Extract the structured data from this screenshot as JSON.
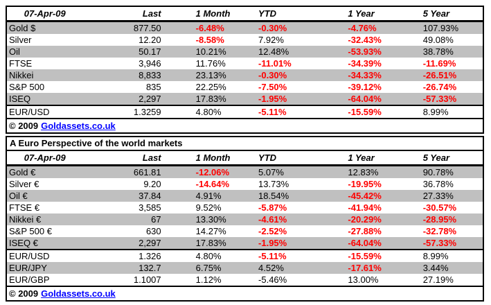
{
  "colors": {
    "negative_red": "#FF0000",
    "row_stripe_gray": "#C0C0C0",
    "link_blue": "#0000FF",
    "border_black": "#000000",
    "background": "#FFFFFF"
  },
  "table1": {
    "date": "07-Apr-09",
    "columns": [
      "Last",
      "1 Month",
      "YTD",
      "1 Year",
      "5 Year"
    ],
    "rows": [
      {
        "label": "Gold $",
        "values": [
          {
            "t": "877.50"
          },
          {
            "t": "-6.48%",
            "red": true
          },
          {
            "t": "-0.30%",
            "red": true
          },
          {
            "t": "-4.76%",
            "red": true
          },
          {
            "t": "107.93%"
          }
        ]
      },
      {
        "label": "Silver",
        "values": [
          {
            "t": "12.20"
          },
          {
            "t": "-8.58%",
            "red": true
          },
          {
            "t": "7.92%"
          },
          {
            "t": "-32.43%",
            "red": true
          },
          {
            "t": "49.08%"
          }
        ]
      },
      {
        "label": "Oil",
        "values": [
          {
            "t": "50.17"
          },
          {
            "t": "10.21%"
          },
          {
            "t": "12.48%"
          },
          {
            "t": "-53.93%",
            "red": true
          },
          {
            "t": "38.78%"
          }
        ]
      },
      {
        "label": "FTSE",
        "values": [
          {
            "t": "3,946"
          },
          {
            "t": "11.76%"
          },
          {
            "t": "-11.01%",
            "red": true
          },
          {
            "t": "-34.39%",
            "red": true
          },
          {
            "t": "-11.69%",
            "red": true
          }
        ]
      },
      {
        "label": "Nikkei",
        "values": [
          {
            "t": "8,833"
          },
          {
            "t": "23.13%"
          },
          {
            "t": "-0.30%",
            "red": true
          },
          {
            "t": "-34.33%",
            "red": true
          },
          {
            "t": "-26.51%",
            "red": true
          }
        ]
      },
      {
        "label": "S&P 500",
        "values": [
          {
            "t": "835"
          },
          {
            "t": "22.25%"
          },
          {
            "t": "-7.50%",
            "red": true
          },
          {
            "t": "-39.12%",
            "red": true
          },
          {
            "t": "-26.74%",
            "red": true
          }
        ]
      },
      {
        "label": "ISEQ",
        "values": [
          {
            "t": "2,297"
          },
          {
            "t": "17.83%"
          },
          {
            "t": "-1.95%",
            "red": true
          },
          {
            "t": "-64.04%",
            "red": true
          },
          {
            "t": "-57.33%",
            "red": true
          }
        ]
      },
      {
        "label": "EUR/USD",
        "sep": true,
        "values": [
          {
            "t": "1.3259"
          },
          {
            "t": "4.80%"
          },
          {
            "t": "-5.11%",
            "red": true
          },
          {
            "t": "-15.59%",
            "red": true
          },
          {
            "t": "8.99%"
          }
        ]
      }
    ],
    "footer": {
      "prefix": "© 2009",
      "link_text": "Goldassets.co.uk"
    }
  },
  "table2": {
    "title": "A Euro Perspective of the world markets",
    "date": "07-Apr-09",
    "columns": [
      "Last",
      "1 Month",
      "YTD",
      "1 Year",
      "5 Year"
    ],
    "rows": [
      {
        "label": "Gold €",
        "values": [
          {
            "t": "661.81"
          },
          {
            "t": "-12.06%",
            "red": true
          },
          {
            "t": "5.07%"
          },
          {
            "t": "12.83%"
          },
          {
            "t": "90.78%"
          }
        ]
      },
      {
        "label": "Silver €",
        "values": [
          {
            "t": "9.20"
          },
          {
            "t": "-14.64%",
            "red": true
          },
          {
            "t": "13.73%"
          },
          {
            "t": "-19.95%",
            "red": true
          },
          {
            "t": "36.78%"
          }
        ]
      },
      {
        "label": "Oil €",
        "values": [
          {
            "t": "37.84"
          },
          {
            "t": "4.91%"
          },
          {
            "t": "18.54%"
          },
          {
            "t": "-45.42%",
            "red": true
          },
          {
            "t": "27.33%"
          }
        ]
      },
      {
        "label": "FTSE €",
        "values": [
          {
            "t": "3,585"
          },
          {
            "t": "9.52%"
          },
          {
            "t": "-5.87%",
            "red": true
          },
          {
            "t": "-41.94%",
            "red": true
          },
          {
            "t": "-30.57%",
            "red": true
          }
        ]
      },
      {
        "label": "Nikkei €",
        "values": [
          {
            "t": "67"
          },
          {
            "t": "13.30%"
          },
          {
            "t": "-4.61%",
            "red": true
          },
          {
            "t": "-20.29%",
            "red": true
          },
          {
            "t": "-28.95%",
            "red": true
          }
        ]
      },
      {
        "label": "S&P 500 €",
        "values": [
          {
            "t": "630"
          },
          {
            "t": "14.27%"
          },
          {
            "t": "-2.52%",
            "red": true
          },
          {
            "t": "-27.88%",
            "red": true
          },
          {
            "t": "-32.78%",
            "red": true
          }
        ]
      },
      {
        "label": "ISEQ €",
        "values": [
          {
            "t": "2,297"
          },
          {
            "t": "17.83%"
          },
          {
            "t": "-1.95%",
            "red": true
          },
          {
            "t": "-64.04%",
            "red": true
          },
          {
            "t": "-57.33%",
            "red": true
          }
        ]
      },
      {
        "label": "EUR/USD",
        "sep": true,
        "values": [
          {
            "t": "1.326"
          },
          {
            "t": "4.80%"
          },
          {
            "t": "-5.11%",
            "red": true
          },
          {
            "t": "-15.59%",
            "red": true
          },
          {
            "t": "8.99%"
          }
        ]
      },
      {
        "label": "EUR/JPY",
        "values": [
          {
            "t": "132.7"
          },
          {
            "t": "6.75%"
          },
          {
            "t": "4.52%"
          },
          {
            "t": "-17.61%",
            "red": true
          },
          {
            "t": "3.44%"
          }
        ]
      },
      {
        "label": "EUR/GBP",
        "values": [
          {
            "t": "1.1007"
          },
          {
            "t": "1.12%"
          },
          {
            "t": "-5.46%"
          },
          {
            "t": "13.00%"
          },
          {
            "t": "27.19%"
          }
        ]
      }
    ],
    "footer": {
      "prefix": "© 2009",
      "link_text": "Goldassets.co.uk"
    }
  }
}
